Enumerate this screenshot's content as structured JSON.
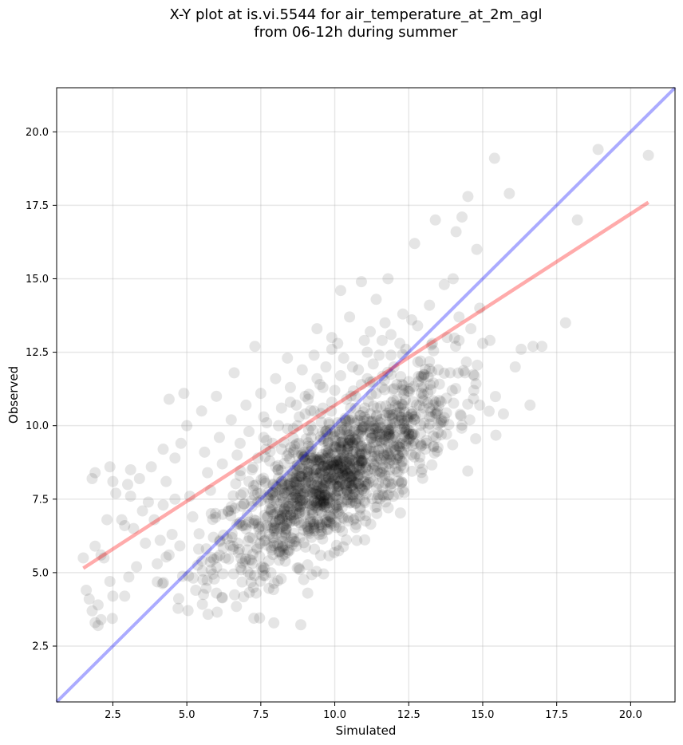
{
  "chart_data": {
    "type": "scatter",
    "title_line1": "X-Y plot at is.vi.5544 for air_temperature_at_2m_agl",
    "title_line2": "from 06-12h during summer",
    "xlabel": "Simulated",
    "ylabel": "Observed",
    "xlim": [
      0.6,
      21.5
    ],
    "ylim": [
      0.6,
      21.5
    ],
    "xticks": [
      2.5,
      5.0,
      7.5,
      10.0,
      12.5,
      15.0,
      17.5,
      20.0
    ],
    "yticks": [
      2.5,
      5.0,
      7.5,
      10.0,
      12.5,
      15.0,
      17.5,
      20.0
    ],
    "xtick_labels": [
      "2.5",
      "5.0",
      "7.5",
      "10.0",
      "12.5",
      "15.0",
      "17.5",
      "20.0"
    ],
    "ytick_labels": [
      "2.5",
      "5.0",
      "7.5",
      "10.0",
      "12.5",
      "15.0",
      "17.5",
      "20.0"
    ],
    "grid": true,
    "point_color": "#000000",
    "point_alpha": 0.1,
    "one_to_one_line": {
      "color": "#0000ff",
      "alpha": 0.33,
      "x": [
        0.6,
        21.5
      ],
      "y": [
        0.6,
        21.5
      ]
    },
    "fit_line": {
      "color": "#ff0000",
      "alpha": 0.33,
      "x": [
        1.5,
        20.6
      ],
      "y": [
        5.15,
        17.6
      ]
    },
    "point_count_estimate": 1500,
    "points": [
      [
        1.5,
        5.5
      ],
      [
        1.6,
        4.4
      ],
      [
        1.7,
        4.1
      ],
      [
        1.8,
        3.7
      ],
      [
        1.9,
        3.3
      ],
      [
        2.0,
        3.2
      ],
      [
        1.8,
        8.2
      ],
      [
        1.9,
        8.4
      ],
      [
        1.9,
        5.9
      ],
      [
        2.1,
        5.6
      ],
      [
        2.2,
        5.5
      ],
      [
        2.3,
        6.8
      ],
      [
        2.0,
        3.9
      ],
      [
        2.1,
        3.4
      ],
      [
        2.4,
        4.7
      ],
      [
        2.5,
        4.2
      ],
      [
        2.4,
        8.6
      ],
      [
        2.5,
        8.1
      ],
      [
        2.6,
        7.7
      ],
      [
        2.8,
        6.8
      ],
      [
        2.9,
        4.2
      ],
      [
        2.9,
        6.6
      ],
      [
        3.0,
        8.0
      ],
      [
        3.1,
        8.5
      ],
      [
        3.1,
        7.6
      ],
      [
        3.2,
        6.5
      ],
      [
        3.3,
        5.2
      ],
      [
        3.4,
        8.2
      ],
      [
        3.5,
        7.1
      ],
      [
        3.6,
        6.0
      ],
      [
        3.7,
        7.4
      ],
      [
        3.8,
        8.6
      ],
      [
        3.9,
        6.8
      ],
      [
        4.0,
        5.3
      ],
      [
        4.1,
        6.1
      ],
      [
        4.2,
        7.3
      ],
      [
        4.3,
        8.1
      ],
      [
        4.4,
        5.6
      ],
      [
        4.5,
        6.3
      ],
      [
        4.6,
        7.5
      ],
      [
        4.2,
        9.2
      ],
      [
        4.4,
        10.9
      ],
      [
        4.6,
        8.9
      ],
      [
        4.8,
        9.4
      ],
      [
        4.9,
        11.1
      ],
      [
        5.0,
        10.0
      ],
      [
        5.1,
        7.6
      ],
      [
        5.2,
        6.9
      ],
      [
        5.3,
        4.4
      ],
      [
        5.4,
        5.8
      ],
      [
        5.5,
        10.5
      ],
      [
        5.6,
        9.1
      ],
      [
        5.7,
        8.4
      ],
      [
        5.8,
        7.8
      ],
      [
        5.9,
        6.2
      ],
      [
        6.0,
        11.0
      ],
      [
        6.1,
        9.6
      ],
      [
        6.2,
        8.7
      ],
      [
        6.3,
        5.5
      ],
      [
        6.4,
        7.1
      ],
      [
        6.5,
        10.2
      ],
      [
        6.6,
        11.8
      ],
      [
        6.7,
        9.0
      ],
      [
        6.8,
        8.3
      ],
      [
        6.9,
        6.6
      ],
      [
        7.0,
        10.7
      ],
      [
        7.1,
        9.8
      ],
      [
        7.2,
        8.5
      ],
      [
        7.3,
        12.7
      ],
      [
        7.4,
        7.4
      ],
      [
        7.5,
        11.1
      ],
      [
        7.6,
        10.3
      ],
      [
        7.7,
        9.5
      ],
      [
        7.8,
        8.8
      ],
      [
        7.9,
        6.2
      ],
      [
        8.0,
        11.6
      ],
      [
        8.1,
        10.0
      ],
      [
        8.2,
        9.2
      ],
      [
        8.3,
        7.7
      ],
      [
        8.4,
        12.3
      ],
      [
        8.5,
        10.8
      ],
      [
        8.6,
        9.9
      ],
      [
        8.7,
        5.9
      ],
      [
        8.8,
        8.6
      ],
      [
        8.9,
        11.9
      ],
      [
        9.0,
        10.4
      ],
      [
        9.1,
        9.3
      ],
      [
        9.2,
        7.1
      ],
      [
        9.3,
        6.5
      ],
      [
        9.4,
        13.3
      ],
      [
        9.5,
        11.4
      ],
      [
        9.6,
        10.6
      ],
      [
        9.7,
        9.8
      ],
      [
        9.8,
        8.2
      ],
      [
        9.9,
        12.6
      ],
      [
        10.0,
        11.2
      ],
      [
        10.1,
        10.1
      ],
      [
        10.2,
        14.6
      ],
      [
        10.3,
        9.0
      ],
      [
        10.4,
        7.8
      ],
      [
        10.5,
        13.7
      ],
      [
        10.6,
        12.0
      ],
      [
        10.7,
        11.0
      ],
      [
        10.8,
        9.7
      ],
      [
        10.9,
        14.9
      ],
      [
        11.0,
        12.9
      ],
      [
        11.1,
        11.6
      ],
      [
        11.2,
        10.4
      ],
      [
        11.3,
        8.1
      ],
      [
        11.4,
        14.3
      ],
      [
        11.5,
        12.4
      ],
      [
        11.6,
        11.3
      ],
      [
        11.7,
        9.5
      ],
      [
        11.8,
        15.0
      ],
      [
        11.9,
        13.1
      ],
      [
        12.0,
        12.0
      ],
      [
        12.1,
        10.9
      ],
      [
        12.2,
        8.9
      ],
      [
        12.3,
        13.8
      ],
      [
        12.4,
        12.6
      ],
      [
        12.5,
        11.5
      ],
      [
        12.6,
        9.7
      ],
      [
        12.7,
        16.2
      ],
      [
        12.8,
        13.4
      ],
      [
        12.9,
        12.2
      ],
      [
        13.0,
        10.6
      ],
      [
        13.1,
        9.5
      ],
      [
        13.2,
        14.1
      ],
      [
        13.3,
        12.8
      ],
      [
        13.4,
        17.0
      ],
      [
        13.5,
        11.9
      ],
      [
        13.6,
        10.2
      ],
      [
        13.7,
        14.8
      ],
      [
        13.8,
        13.0
      ],
      [
        13.9,
        11.8
      ],
      [
        14.0,
        15.0
      ],
      [
        14.1,
        16.6
      ],
      [
        14.2,
        12.9
      ],
      [
        14.3,
        17.1
      ],
      [
        14.4,
        11.8
      ],
      [
        14.5,
        17.8
      ],
      [
        14.6,
        13.3
      ],
      [
        14.7,
        11.2
      ],
      [
        14.8,
        16.0
      ],
      [
        14.9,
        14.0
      ],
      [
        15.0,
        12.8
      ],
      [
        15.4,
        19.1
      ],
      [
        15.7,
        10.4
      ],
      [
        15.9,
        17.9
      ],
      [
        16.1,
        12.0
      ],
      [
        16.3,
        12.6
      ],
      [
        16.6,
        10.7
      ],
      [
        16.7,
        12.7
      ],
      [
        17.0,
        12.7
      ],
      [
        17.8,
        13.5
      ],
      [
        18.2,
        17.0
      ],
      [
        18.9,
        19.4
      ],
      [
        20.6,
        19.2
      ],
      [
        14.9,
        10.7
      ],
      [
        14.2,
        13.7
      ],
      [
        9.0,
        11.0
      ],
      [
        9.3,
        10.5
      ],
      [
        9.6,
        11.3
      ],
      [
        9.9,
        10.8
      ],
      [
        10.2,
        11.7
      ],
      [
        10.5,
        10.2
      ],
      [
        10.8,
        11.9
      ],
      [
        8.7,
        10.7
      ],
      [
        9.2,
        9.6
      ],
      [
        9.8,
        10.1
      ],
      [
        10.4,
        10.9
      ],
      [
        10.9,
        11.4
      ],
      [
        11.3,
        12.1
      ],
      [
        8.4,
        9.9
      ],
      [
        8.8,
        10.3
      ],
      [
        9.4,
        11.6
      ],
      [
        10.0,
        9.8
      ],
      [
        10.7,
        10.6
      ],
      [
        11.1,
        12.5
      ],
      [
        11.6,
        12.9
      ],
      [
        7.9,
        9.4
      ],
      [
        8.2,
        10.6
      ],
      [
        8.6,
        9.1
      ],
      [
        9.1,
        10.9
      ],
      [
        9.7,
        12.0
      ],
      [
        10.3,
        12.3
      ],
      [
        10.6,
        9.4
      ],
      [
        11.0,
        10.3
      ],
      [
        11.4,
        11.1
      ],
      [
        11.9,
        12.4
      ],
      [
        7.4,
        8.9
      ],
      [
        7.7,
        10.1
      ],
      [
        8.0,
        8.6
      ],
      [
        8.5,
        11.3
      ],
      [
        9.5,
        8.8
      ],
      [
        10.1,
        12.8
      ],
      [
        11.2,
        13.2
      ],
      [
        11.7,
        13.5
      ],
      [
        12.2,
        12.8
      ],
      [
        12.6,
        13.6
      ],
      [
        6.8,
        9.4
      ],
      [
        7.1,
        8.1
      ],
      [
        7.6,
        9.6
      ],
      [
        8.3,
        8.0
      ],
      [
        8.9,
        9.0
      ],
      [
        9.3,
        12.4
      ],
      [
        9.9,
        13.0
      ],
      [
        10.5,
        8.7
      ],
      [
        11.3,
        9.9
      ],
      [
        12.1,
        11.4
      ]
    ]
  }
}
